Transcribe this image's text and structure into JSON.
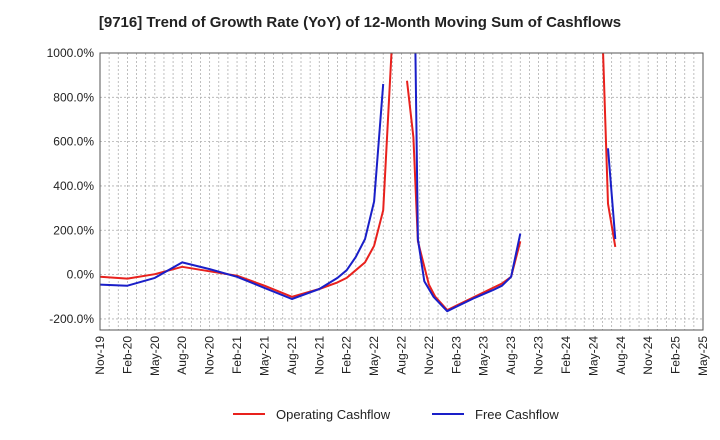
{
  "chart_data": {
    "type": "line",
    "title": "[9716]  Trend of Growth Rate (YoY) of 12-Month Moving Sum of Cashflows",
    "xlabel": "",
    "ylabel": "",
    "ylim": [
      -250,
      1000
    ],
    "y_ticks": [
      "-200.0%",
      "0.0%",
      "200.0%",
      "400.0%",
      "600.0%",
      "800.0%",
      "1000.0%"
    ],
    "y_tick_values": [
      -200,
      0,
      200,
      400,
      600,
      800,
      1000
    ],
    "x_ticks": [
      "Nov-19",
      "Feb-20",
      "May-20",
      "Aug-20",
      "Nov-20",
      "Feb-21",
      "May-21",
      "Aug-21",
      "Nov-21",
      "Feb-22",
      "May-22",
      "Aug-22",
      "Nov-22",
      "Feb-23",
      "May-23",
      "Aug-23",
      "Nov-23",
      "Feb-24",
      "May-24",
      "Aug-24",
      "Nov-24",
      "Feb-25",
      "May-25"
    ],
    "grid": true,
    "legend_position": "bottom",
    "colors": {
      "operating": "#e8211d",
      "free": "#1a1fc8"
    },
    "series": [
      {
        "name": "Operating Cashflow",
        "color": "#e8211d",
        "points": [
          [
            0,
            -10
          ],
          [
            3,
            -18
          ],
          [
            6,
            2
          ],
          [
            9,
            35
          ],
          [
            12,
            15
          ],
          [
            15,
            -5
          ],
          [
            18,
            -50
          ],
          [
            21,
            -100
          ],
          [
            24,
            -65
          ],
          [
            26,
            -35
          ],
          [
            27,
            -15
          ],
          [
            28,
            20
          ],
          [
            29,
            55
          ],
          [
            30,
            130
          ],
          [
            31,
            290
          ],
          [
            32,
            1080
          ],
          [
            null,
            null
          ],
          [
            33.6,
            875
          ],
          [
            34.3,
            620
          ],
          [
            34.8,
            150
          ],
          [
            36,
            -45
          ],
          [
            36.7,
            -100
          ],
          [
            38,
            -160
          ],
          [
            39,
            -140
          ],
          [
            41,
            -100
          ],
          [
            43,
            -60
          ],
          [
            44,
            -40
          ],
          [
            45,
            -10
          ],
          [
            46,
            150
          ],
          [
            null,
            null
          ],
          [
            55,
            1080
          ],
          [
            55.6,
            320
          ],
          [
            56.4,
            125
          ]
        ]
      },
      {
        "name": "Free Cashflow",
        "color": "#1a1fc8",
        "points": [
          [
            0,
            -45
          ],
          [
            3,
            -50
          ],
          [
            6,
            -15
          ],
          [
            9,
            55
          ],
          [
            12,
            25
          ],
          [
            15,
            -10
          ],
          [
            18,
            -60
          ],
          [
            21,
            -110
          ],
          [
            24,
            -65
          ],
          [
            26,
            -15
          ],
          [
            27,
            20
          ],
          [
            28,
            80
          ],
          [
            29,
            160
          ],
          [
            30,
            330
          ],
          [
            31,
            860
          ],
          [
            null,
            null
          ],
          [
            34.5,
            1080
          ],
          [
            34.8,
            160
          ],
          [
            35.5,
            -30
          ],
          [
            36.5,
            -100
          ],
          [
            38,
            -165
          ],
          [
            39,
            -145
          ],
          [
            41,
            -105
          ],
          [
            43,
            -70
          ],
          [
            44,
            -50
          ],
          [
            45,
            -10
          ],
          [
            46,
            185
          ],
          [
            null,
            null
          ],
          [
            55.6,
            570
          ],
          [
            56.4,
            160
          ]
        ]
      }
    ]
  }
}
